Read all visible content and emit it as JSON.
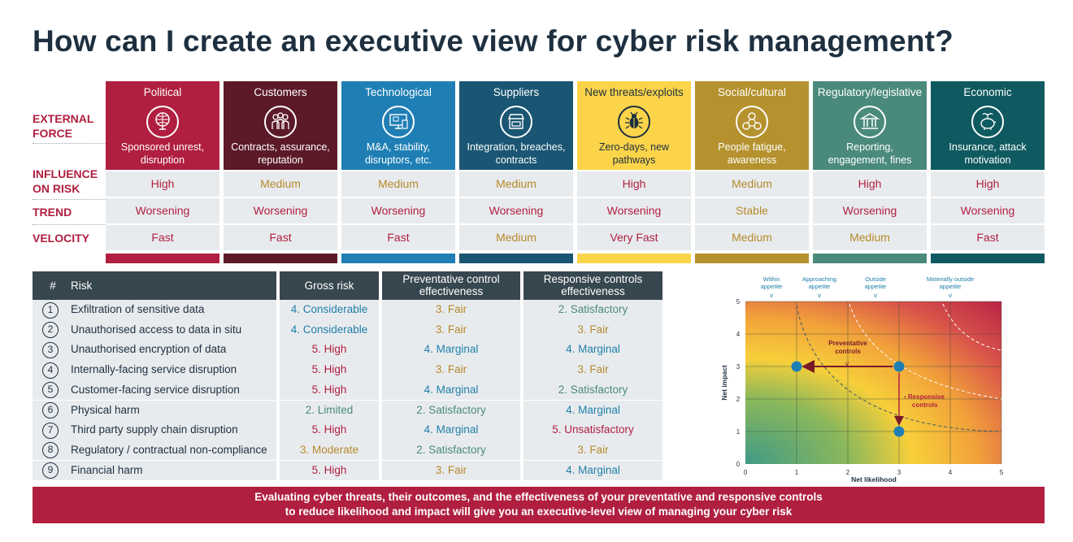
{
  "title": "How can I create an executive view for cyber risk management?",
  "row_labels": {
    "external_force": "EXTERNAL FORCE",
    "influence": "INFLUENCE ON RISK",
    "trend": "TREND",
    "velocity": "VELOCITY"
  },
  "forces": [
    {
      "name": "Political",
      "icon": "globe-icon",
      "desc": "Sponsored unrest, disruption",
      "influence": "High",
      "trend": "Worsening",
      "velocity": "Fast",
      "color": "#b01f3f"
    },
    {
      "name": "Customers",
      "icon": "people-icon",
      "desc": "Contracts, assurance, reputation",
      "influence": "Medium",
      "trend": "Worsening",
      "velocity": "Fast",
      "color": "#5c1a29"
    },
    {
      "name": "Technological",
      "icon": "devices-icon",
      "desc": "M&A, stability, disruptors, etc.",
      "influence": "Medium",
      "trend": "Worsening",
      "velocity": "Fast",
      "color": "#1f7fb5"
    },
    {
      "name": "Suppliers",
      "icon": "store-icon",
      "desc": "Integration, breaches, contracts",
      "influence": "Medium",
      "trend": "Worsening",
      "velocity": "Medium",
      "color": "#1a5673"
    },
    {
      "name": "New threats/exploits",
      "icon": "bug-icon",
      "desc": "Zero-days, new pathways",
      "influence": "High",
      "trend": "Worsening",
      "velocity": "Very Fast",
      "color": "#fbd44a"
    },
    {
      "name": "Social/cultural",
      "icon": "network-icon",
      "desc": "People fatigue, awareness",
      "influence": "Medium",
      "trend": "Stable",
      "velocity": "Medium",
      "color": "#b5922e"
    },
    {
      "name": "Regulatory/legislative",
      "icon": "bank-icon",
      "desc": "Reporting, engagement, fines",
      "influence": "High",
      "trend": "Worsening",
      "velocity": "Medium",
      "color": "#4a8a7c"
    },
    {
      "name": "Economic",
      "icon": "piggybank-icon",
      "desc": "Insurance, attack motivation",
      "influence": "High",
      "trend": "Worsening",
      "velocity": "Fast",
      "color": "#0f5a60"
    }
  ],
  "risk_table": {
    "headers": {
      "num": "#",
      "risk": "Risk",
      "gross": "Gross risk",
      "prev": "Preventative control effectiveness",
      "resp": "Responsive controls effectiveness"
    },
    "rows": [
      {
        "n": "1",
        "risk": "Exfiltration of sensitive data",
        "gross": "4. Considerable",
        "prev": "3. Fair",
        "resp": "2. Satisfactory"
      },
      {
        "n": "2",
        "risk": "Unauthorised access to data in situ",
        "gross": "4. Considerable",
        "prev": "3. Fair",
        "resp": "3. Fair"
      },
      {
        "n": "3",
        "risk": "Unauthorised encryption of data",
        "gross": "5. High",
        "prev": "4. Marginal",
        "resp": "4. Marginal"
      },
      {
        "n": "4",
        "risk": "Internally-facing service disruption",
        "gross": "5. High",
        "prev": "3. Fair",
        "resp": "3. Fair"
      },
      {
        "n": "5",
        "risk": "Customer-facing service disruption",
        "gross": "5. High",
        "prev": "4. Marginal",
        "resp": "2. Satisfactory"
      },
      {
        "n": "6",
        "risk": "Physical harm",
        "gross": "2. Limited",
        "prev": "2. Satisfactory",
        "resp": "4. Marginal"
      },
      {
        "n": "7",
        "risk": "Third party supply chain disruption",
        "gross": "5. High",
        "prev": "4. Marginal",
        "resp": "5. Unsatisfactory"
      },
      {
        "n": "8",
        "risk": "Regulatory / contractual non-compliance",
        "gross": "3. Moderate",
        "prev": "2. Satisfactory",
        "resp": "3. Fair"
      },
      {
        "n": "9",
        "risk": "Financial harm",
        "gross": "5. High",
        "prev": "3. Fair",
        "resp": "4. Marginal"
      }
    ]
  },
  "heatmap": {
    "appetite_labels": [
      "Within appetite",
      "Approaching appetite",
      "Outside appetite",
      "Materially outside appetite"
    ],
    "x_label": "Net likelihood",
    "y_label": "Net impact",
    "ticks": [
      "0",
      "1",
      "2",
      "3",
      "4",
      "5"
    ],
    "annotation_prev": "Preventative controls",
    "annotation_resp": "Responsive controls",
    "points": [
      {
        "x": 3,
        "y": 3
      },
      {
        "x": 1,
        "y": 3
      },
      {
        "x": 3,
        "y": 1
      }
    ]
  },
  "footer": {
    "line1": "Evaluating cyber threats, their outcomes, and the effectiveness of your preventative and responsive controls",
    "line2": "to reduce likelihood and impact will give you an executive-level view of managing your cyber risk"
  }
}
